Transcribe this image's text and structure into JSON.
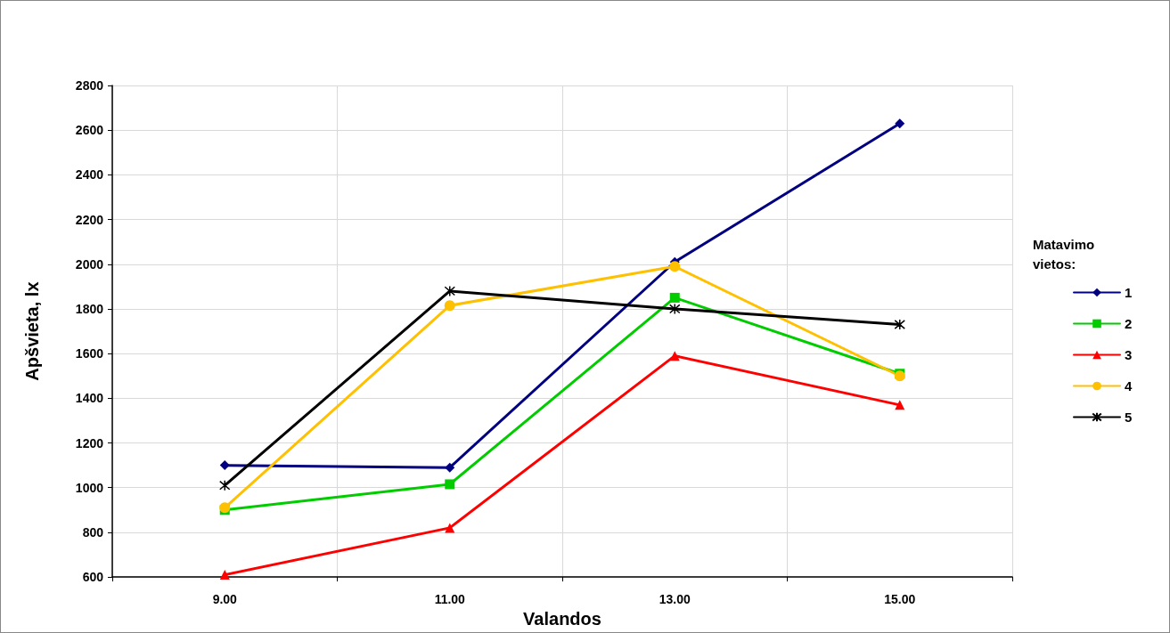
{
  "chart_data": {
    "type": "line",
    "xlabel": "Valandos",
    "ylabel": "Apšvieta, lx",
    "legend_title": "Matavimo vietos:",
    "categories": [
      "9.00",
      "11.00",
      "13.00",
      "15.00"
    ],
    "series": [
      {
        "name": "1",
        "color": "#000080",
        "marker": "diamond",
        "values": [
          1100,
          1090,
          2010,
          2630
        ]
      },
      {
        "name": "2",
        "color": "#00cc00",
        "marker": "square",
        "values": [
          900,
          1015,
          1850,
          1510
        ]
      },
      {
        "name": "3",
        "color": "#ff0000",
        "marker": "triangle",
        "values": [
          610,
          820,
          1590,
          1370
        ]
      },
      {
        "name": "4",
        "color": "#ffc000",
        "marker": "circle",
        "values": [
          910,
          1815,
          1990,
          1500
        ]
      },
      {
        "name": "5",
        "color": "#000000",
        "marker": "cross",
        "values": [
          1010,
          1880,
          1800,
          1730
        ]
      }
    ],
    "ylim": [
      600,
      2800
    ],
    "yticks": [
      600,
      800,
      1000,
      1200,
      1400,
      1600,
      1800,
      2000,
      2200,
      2400,
      2600,
      2800
    ],
    "grid": true,
    "legend": "right",
    "line_style": "solid"
  }
}
